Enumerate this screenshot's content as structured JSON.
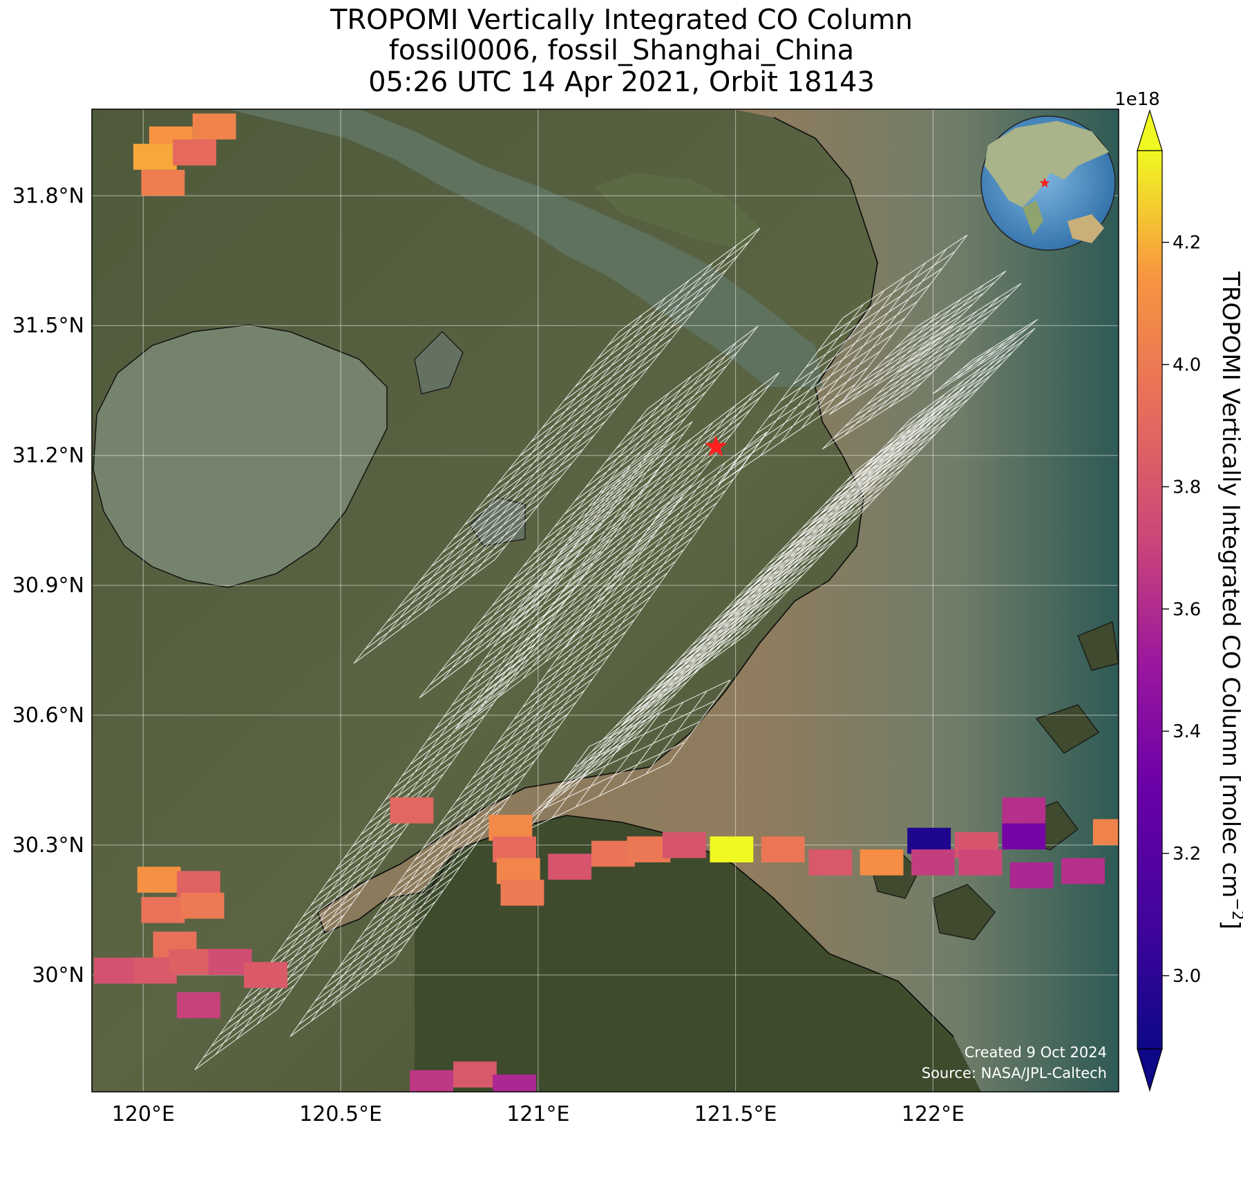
{
  "title": {
    "line1": "TROPOMI Vertically Integrated CO Column",
    "line2": "fossil0006, fossil_Shanghai_China",
    "line3": "05:26 UTC 14 Apr 2021, Orbit 18143"
  },
  "map": {
    "lon_range": [
      119.87,
      122.47
    ],
    "lat_range": [
      29.73,
      32.0
    ],
    "lon_ticks": [
      {
        "value": 120.0,
        "label": "120°E"
      },
      {
        "value": 120.5,
        "label": "120.5°E"
      },
      {
        "value": 121.0,
        "label": "121°E"
      },
      {
        "value": 121.5,
        "label": "121.5°E"
      },
      {
        "value": 122.0,
        "label": "122°E"
      }
    ],
    "lat_ticks": [
      {
        "value": 30.0,
        "label": "30°N"
      },
      {
        "value": 30.3,
        "label": "30.3°N"
      },
      {
        "value": 30.6,
        "label": "30.6°N"
      },
      {
        "value": 30.9,
        "label": "30.9°N"
      },
      {
        "value": 31.2,
        "label": "31.2°N"
      },
      {
        "value": 31.5,
        "label": "31.5°N"
      },
      {
        "value": 31.8,
        "label": "31.8°N"
      }
    ],
    "site_marker": {
      "lon": 121.45,
      "lat": 31.22,
      "color": "#ff2020"
    },
    "gridlines": true,
    "inset_globe": {
      "position": "top-right",
      "site_color": "#ff2020"
    },
    "credit": {
      "line1": "Created 9 Oct 2024",
      "line2": "Source: NASA/JPL-Caltech"
    }
  },
  "colorbar": {
    "label": "TROPOMI Vertically Integrated CO Column [molec cm",
    "label_sup": "−2",
    "label_end": "]",
    "multiplier": "1e18",
    "vmin": 2.88,
    "vmax": 4.35,
    "ticks": [
      "3.0",
      "3.2",
      "3.4",
      "3.6",
      "3.8",
      "4.0",
      "4.2"
    ],
    "tick_values": [
      3.0,
      3.2,
      3.4,
      3.6,
      3.8,
      4.0,
      4.2
    ],
    "colormap": "plasma",
    "extend": "both"
  },
  "chart_data": {
    "type": "heatmap",
    "units": "molec cm^-2 (x1e18)",
    "pixels": [
      {
        "lon": 120.07,
        "lat": 31.93,
        "value": 4.13
      },
      {
        "lon": 120.18,
        "lat": 31.96,
        "value": 4.05
      },
      {
        "lon": 120.03,
        "lat": 31.89,
        "value": 4.18
      },
      {
        "lon": 120.13,
        "lat": 31.9,
        "value": 3.92
      },
      {
        "lon": 120.05,
        "lat": 31.83,
        "value": 4.02
      },
      {
        "lon": 120.04,
        "lat": 30.22,
        "value": 4.12
      },
      {
        "lon": 120.14,
        "lat": 30.21,
        "value": 3.88
      },
      {
        "lon": 120.05,
        "lat": 30.15,
        "value": 3.96
      },
      {
        "lon": 120.15,
        "lat": 30.16,
        "value": 4.0
      },
      {
        "lon": 120.08,
        "lat": 30.07,
        "value": 3.95
      },
      {
        "lon": 119.93,
        "lat": 30.01,
        "value": 3.78
      },
      {
        "lon": 120.03,
        "lat": 30.01,
        "value": 3.82
      },
      {
        "lon": 120.12,
        "lat": 30.03,
        "value": 3.86
      },
      {
        "lon": 120.22,
        "lat": 30.03,
        "value": 3.76
      },
      {
        "lon": 120.31,
        "lat": 30.0,
        "value": 3.83
      },
      {
        "lon": 120.14,
        "lat": 29.93,
        "value": 3.7
      },
      {
        "lon": 120.68,
        "lat": 30.38,
        "value": 3.9
      },
      {
        "lon": 120.93,
        "lat": 30.34,
        "value": 4.08
      },
      {
        "lon": 120.94,
        "lat": 30.29,
        "value": 3.92
      },
      {
        "lon": 120.95,
        "lat": 30.24,
        "value": 4.06
      },
      {
        "lon": 120.96,
        "lat": 30.19,
        "value": 4.0
      },
      {
        "lon": 121.08,
        "lat": 30.25,
        "value": 3.8
      },
      {
        "lon": 121.19,
        "lat": 30.28,
        "value": 3.97
      },
      {
        "lon": 121.28,
        "lat": 30.29,
        "value": 3.99
      },
      {
        "lon": 121.37,
        "lat": 30.3,
        "value": 3.8
      },
      {
        "lon": 121.49,
        "lat": 30.29,
        "value": 4.35
      },
      {
        "lon": 121.62,
        "lat": 30.29,
        "value": 3.98
      },
      {
        "lon": 121.74,
        "lat": 30.26,
        "value": 3.82
      },
      {
        "lon": 121.87,
        "lat": 30.26,
        "value": 4.1
      },
      {
        "lon": 121.99,
        "lat": 30.31,
        "value": 2.95
      },
      {
        "lon": 122.0,
        "lat": 30.26,
        "value": 3.68
      },
      {
        "lon": 122.11,
        "lat": 30.3,
        "value": 3.8
      },
      {
        "lon": 122.12,
        "lat": 30.26,
        "value": 3.72
      },
      {
        "lon": 122.23,
        "lat": 30.38,
        "value": 3.62
      },
      {
        "lon": 122.23,
        "lat": 30.32,
        "value": 3.35
      },
      {
        "lon": 122.25,
        "lat": 30.23,
        "value": 3.58
      },
      {
        "lon": 122.38,
        "lat": 30.24,
        "value": 3.62
      },
      {
        "lon": 122.46,
        "lat": 30.33,
        "value": 4.05
      },
      {
        "lon": 120.84,
        "lat": 29.77,
        "value": 3.82
      },
      {
        "lon": 120.73,
        "lat": 29.75,
        "value": 3.66
      },
      {
        "lon": 120.94,
        "lat": 29.74,
        "value": 3.58
      }
    ]
  }
}
